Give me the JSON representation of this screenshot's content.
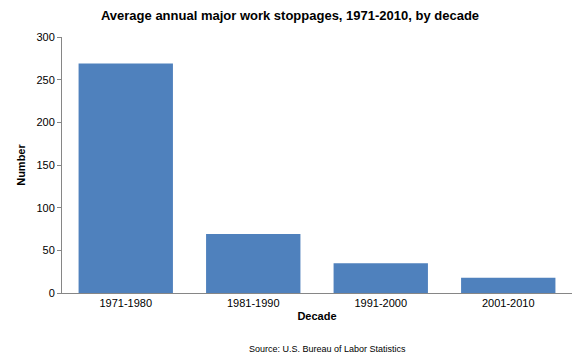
{
  "chart_data": {
    "type": "bar",
    "title": "Average annual major work stoppages, 1971-2010, by decade",
    "x_label": "Decade",
    "y_label": "Number",
    "categories": [
      "1971-1980",
      "1981-1990",
      "1991-2000",
      "2001-2010"
    ],
    "values": [
      269,
      69,
      35,
      18
    ],
    "color": "#4f81bd",
    "ylim": [
      0,
      300
    ],
    "yticks": [
      0,
      50,
      100,
      150,
      200,
      250,
      300
    ],
    "grid": false,
    "annotations": [
      "Source: U.S. Bureau of Labor Statistics"
    ]
  }
}
